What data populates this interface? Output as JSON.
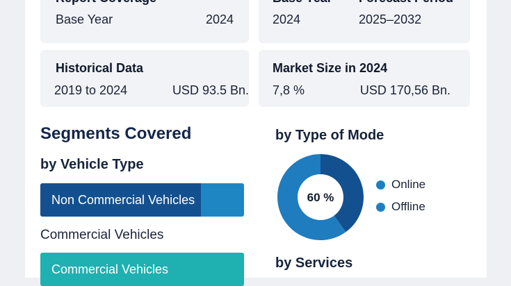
{
  "cards": {
    "report_coverage": {
      "title": "Report Coverage",
      "left_label": "Base Year",
      "right_value": "2024"
    },
    "base_year_forecast": {
      "title_left": "Base Year",
      "title_right": "Forecast Period",
      "value_left": "2024",
      "value_right": "2025–2032"
    },
    "historical_data": {
      "title": "Historical Data",
      "left_value": "2019 to 2024",
      "right_value": "USD 93.5 Bn."
    },
    "market_size": {
      "title": "Market Size in 2024",
      "left_value": "7,8 %",
      "right_value": "USD 170,56 Bn."
    }
  },
  "segments": {
    "title": "Segments Covered",
    "vehicle_type": {
      "title": "by Vehicle Type",
      "bar1_label": "Non Commercial Vehicles",
      "bar1_fill_fraction": 0.79,
      "middle_label": "Commercial Vehicles",
      "bar2_label": "Commercial Vehicles"
    }
  },
  "mode": {
    "title": "by Type of Mode",
    "center_label": "60 %",
    "legend": [
      {
        "label": "Online",
        "color": "#1d7fc0"
      },
      {
        "label": "Offline",
        "color": "#1d7fc0"
      }
    ],
    "slices": [
      {
        "label": "Online",
        "value": 60,
        "color": "#1f7cbf"
      },
      {
        "label": "Offline",
        "value": 40,
        "color": "#13508f"
      }
    ]
  },
  "services": {
    "title": "by Services"
  },
  "colors": {
    "dark_blue": "#13508f",
    "mid_blue": "#1f86c4",
    "teal": "#1fb0b1"
  }
}
